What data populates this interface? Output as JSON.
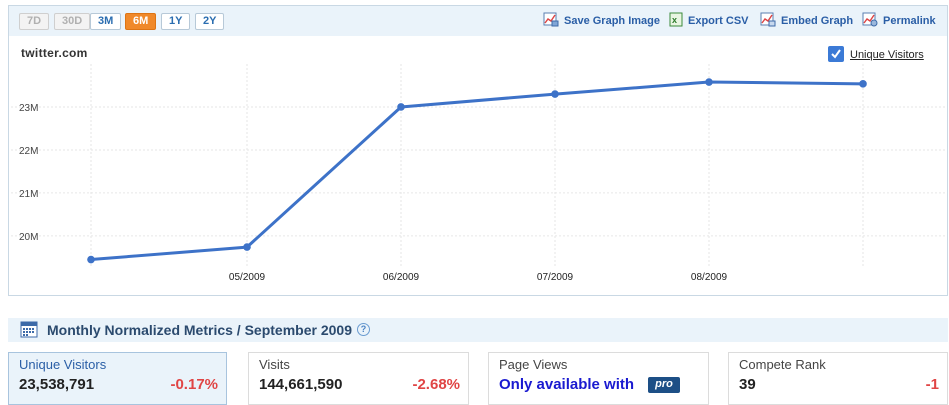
{
  "toolbar": {
    "ranges": [
      {
        "label": "7D",
        "state": "disabled"
      },
      {
        "label": "30D",
        "state": "disabled"
      },
      {
        "label": "3M",
        "state": "normal"
      },
      {
        "label": "6M",
        "state": "active"
      },
      {
        "label": "1Y",
        "state": "normal"
      },
      {
        "label": "2Y",
        "state": "normal"
      }
    ],
    "save_image": "Save Graph Image",
    "export_csv": "Export CSV",
    "embed_graph": "Embed Graph",
    "permalink": "Permalink"
  },
  "graph": {
    "site": "twitter.com",
    "legend_label": "Unique Visitors",
    "legend_checked": true
  },
  "chart_data": {
    "type": "line",
    "title": "",
    "xlabel": "",
    "ylabel": "",
    "x_tick_labels": [
      "05/2009",
      "06/2009",
      "07/2009",
      "08/2009"
    ],
    "y_tick_labels": [
      "20M",
      "21M",
      "22M",
      "23M"
    ],
    "ylim": [
      19300000,
      24000000
    ],
    "grid": true,
    "line_color": "#3d72c8",
    "series": [
      {
        "x": [
          "04/2009",
          "05/2009",
          "06/2009",
          "07/2009",
          "08/2009",
          "09/2009"
        ],
        "values": [
          19450000,
          19740000,
          23000000,
          23300000,
          23580000,
          23538791
        ]
      }
    ]
  },
  "metrics": {
    "title": "Monthly Normalized Metrics / September 2009",
    "help": "?",
    "cards": [
      {
        "label": "Unique Visitors",
        "value": "23,538,791",
        "change": "-0.17%"
      },
      {
        "label": "Visits",
        "value": "144,661,590",
        "change": "-2.68%"
      },
      {
        "label": "Page Views",
        "pro_text": "Only available with",
        "pro_badge": "pro"
      },
      {
        "label": "Compete Rank",
        "value": "39",
        "change": "-1"
      }
    ]
  },
  "colors": {
    "accent": "#f0892a",
    "link": "#2a5ea6",
    "negative": "#e04545",
    "panel_bg": "#eaf3fa"
  },
  "icons": [
    "save-graph-icon",
    "csv-icon",
    "embed-graph-icon",
    "permalink-icon",
    "checkbox-icon",
    "calendar-icon",
    "help-icon"
  ]
}
